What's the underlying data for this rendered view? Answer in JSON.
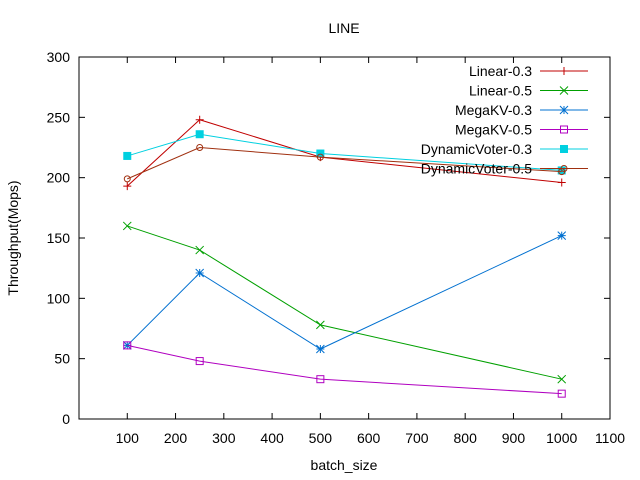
{
  "chart_data": {
    "type": "line",
    "title": "LINE",
    "xlabel": "batch_size",
    "ylabel": "Throughput(Mops)",
    "xlim": [
      0,
      1100
    ],
    "ylim": [
      0,
      300
    ],
    "xticks": [
      100,
      200,
      300,
      400,
      500,
      600,
      700,
      800,
      900,
      1000,
      1100
    ],
    "yticks": [
      0,
      50,
      100,
      150,
      200,
      250,
      300
    ],
    "grid": false,
    "legend_position": "top-right",
    "x": [
      100,
      250,
      500,
      1000
    ],
    "series": [
      {
        "name": "Linear-0.3",
        "color": "#c00000",
        "marker": "plus",
        "values": [
          193,
          248,
          217,
          196
        ]
      },
      {
        "name": "Linear-0.5",
        "color": "#00a000",
        "marker": "cross",
        "values": [
          160,
          140,
          78,
          33
        ]
      },
      {
        "name": "MegaKV-0.3",
        "color": "#0070d0",
        "marker": "star",
        "values": [
          61,
          121,
          58,
          152
        ]
      },
      {
        "name": "MegaKV-0.5",
        "color": "#b000c0",
        "marker": "open-square",
        "values": [
          61,
          48,
          33,
          21
        ]
      },
      {
        "name": "DynamicVoter-0.3",
        "color": "#00d0e0",
        "marker": "filled-square",
        "values": [
          218,
          236,
          220,
          206
        ]
      },
      {
        "name": "DynamicVoter-0.5",
        "color": "#a03010",
        "marker": "open-circle",
        "values": [
          199,
          225,
          217,
          205
        ]
      }
    ]
  }
}
